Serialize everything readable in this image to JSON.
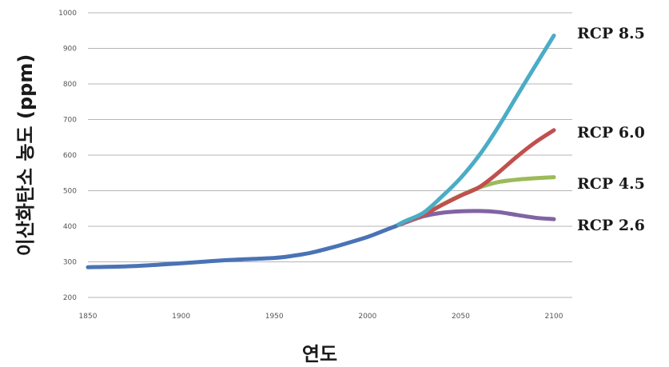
{
  "chart_data": {
    "type": "line",
    "xlabel": "연도",
    "ylabel": "이산화탄소 농도 (ppm)",
    "xlim": [
      1850,
      2100
    ],
    "ylim": [
      200,
      1000
    ],
    "xticks": [
      1850,
      1900,
      1950,
      2000,
      2050,
      2100
    ],
    "yticks": [
      200,
      300,
      400,
      500,
      600,
      700,
      800,
      900,
      1000
    ],
    "grid": "horizontal",
    "legend": "right",
    "history": {
      "color": "#4a73b5",
      "points": [
        [
          1850,
          285
        ],
        [
          1875,
          288
        ],
        [
          1900,
          296
        ],
        [
          1925,
          305
        ],
        [
          1950,
          311
        ],
        [
          1960,
          317
        ],
        [
          1970,
          326
        ],
        [
          1980,
          339
        ],
        [
          1990,
          354
        ],
        [
          2000,
          370
        ],
        [
          2010,
          390
        ],
        [
          2015,
          400
        ]
      ]
    },
    "series": [
      {
        "name": "RCP 8.5",
        "color": "#4bacc6",
        "points": [
          [
            2015,
            400
          ],
          [
            2020,
            414
          ],
          [
            2030,
            438
          ],
          [
            2040,
            484
          ],
          [
            2050,
            536
          ],
          [
            2060,
            600
          ],
          [
            2070,
            678
          ],
          [
            2080,
            765
          ],
          [
            2090,
            851
          ],
          [
            2100,
            936
          ]
        ]
      },
      {
        "name": "RCP 6.0",
        "color": "#c0504d",
        "points": [
          [
            2015,
            400
          ],
          [
            2020,
            412
          ],
          [
            2030,
            432
          ],
          [
            2040,
            460
          ],
          [
            2050,
            486
          ],
          [
            2060,
            510
          ],
          [
            2070,
            550
          ],
          [
            2080,
            595
          ],
          [
            2090,
            636
          ],
          [
            2100,
            670
          ]
        ]
      },
      {
        "name": "RCP 4.5",
        "color": "#9bbb59",
        "points": [
          [
            2015,
            400
          ],
          [
            2020,
            412
          ],
          [
            2030,
            432
          ],
          [
            2040,
            461
          ],
          [
            2050,
            487
          ],
          [
            2060,
            509
          ],
          [
            2070,
            524
          ],
          [
            2080,
            531
          ],
          [
            2090,
            535
          ],
          [
            2100,
            538
          ]
        ]
      },
      {
        "name": "RCP 2.6",
        "color": "#8064a2",
        "points": [
          [
            2015,
            400
          ],
          [
            2020,
            410
          ],
          [
            2030,
            428
          ],
          [
            2040,
            438
          ],
          [
            2050,
            442
          ],
          [
            2060,
            443
          ],
          [
            2070,
            440
          ],
          [
            2080,
            432
          ],
          [
            2090,
            424
          ],
          [
            2100,
            420
          ]
        ]
      }
    ]
  }
}
